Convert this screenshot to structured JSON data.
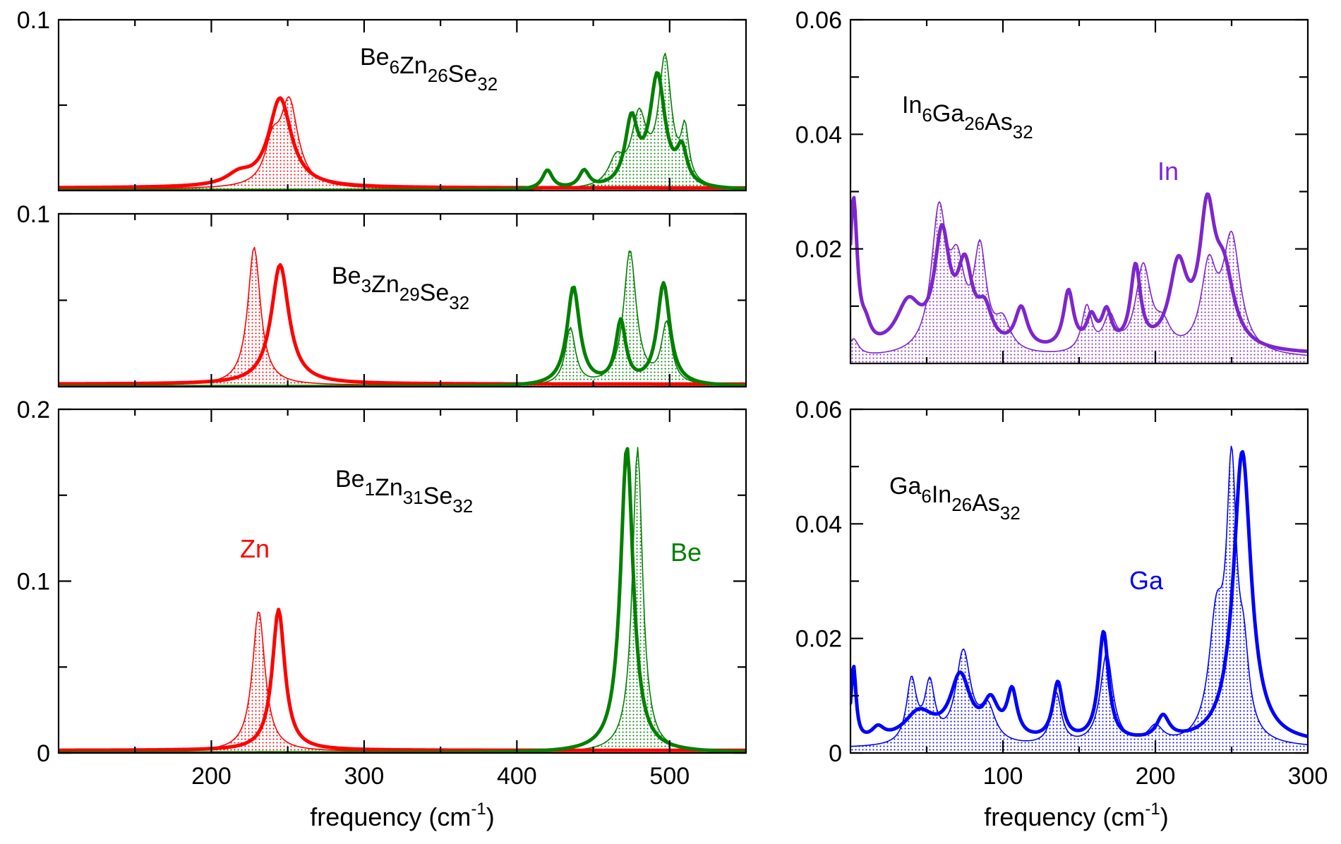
{
  "colors": {
    "Zn": "#ff0000",
    "Be": "#008000",
    "In": "#7d26cd",
    "Ga": "#0000ff",
    "axes": "#000000"
  },
  "chart_data": [
    {
      "type": "line",
      "title": "Be6Zn26Se32",
      "formula": [
        {
          "t": "Be",
          "s": "6"
        },
        {
          "t": "Zn",
          "s": "26"
        },
        {
          "t": "Se",
          "s": "32"
        }
      ],
      "xlim": [
        100,
        550
      ],
      "ylim": [
        0,
        0.1
      ],
      "y_ticks_labeled": [
        "0.1"
      ],
      "xlabel": "",
      "ylabel": "",
      "series": [
        {
          "name": "Zn",
          "style": "thick",
          "color": "#ff0000",
          "peaks": [
            [
              245,
              0.052,
              9
            ],
            [
              218,
              0.006,
              10
            ]
          ],
          "base": 0.0015
        },
        {
          "name": "Zn",
          "style": "thin-dotted-fill",
          "color": "#ff0000",
          "peaks": [
            [
              251,
              0.049,
              7
            ],
            [
              240,
              0.022,
              6
            ]
          ],
          "base": 0.0008
        },
        {
          "name": "Be",
          "style": "thick",
          "color": "#008000",
          "peaks": [
            [
              420,
              0.011,
              4
            ],
            [
              444,
              0.01,
              4
            ],
            [
              475,
              0.038,
              5
            ],
            [
              492,
              0.065,
              6
            ],
            [
              508,
              0.02,
              4
            ]
          ],
          "base": 0.0
        },
        {
          "name": "Be",
          "style": "thin-dotted-fill",
          "color": "#008000",
          "peaks": [
            [
              465,
              0.015,
              6
            ],
            [
              480,
              0.04,
              6
            ],
            [
              497,
              0.074,
              5
            ],
            [
              510,
              0.03,
              3
            ]
          ],
          "base": 0.0
        }
      ]
    },
    {
      "type": "line",
      "title": "Be3Zn29Se32",
      "formula": [
        {
          "t": "Be",
          "s": "3"
        },
        {
          "t": "Zn",
          "s": "29"
        },
        {
          "t": "Se",
          "s": "32"
        }
      ],
      "xlim": [
        100,
        550
      ],
      "ylim": [
        0,
        0.1
      ],
      "y_ticks_labeled": [
        "0.1"
      ],
      "xlabel": "",
      "ylabel": "",
      "series": [
        {
          "name": "Zn",
          "style": "thick",
          "color": "#ff0000",
          "peaks": [
            [
              245,
              0.069,
              7
            ]
          ],
          "base": 0.0015
        },
        {
          "name": "Zn",
          "style": "thin-dotted-fill",
          "color": "#ff0000",
          "peaks": [
            [
              228,
              0.08,
              5
            ]
          ],
          "base": 0.0008
        },
        {
          "name": "Be",
          "style": "thick",
          "color": "#008000",
          "peaks": [
            [
              437,
              0.057,
              5
            ],
            [
              468,
              0.036,
              4
            ],
            [
              496,
              0.059,
              5
            ]
          ],
          "base": 0.0
        },
        {
          "name": "Be",
          "style": "thin-dotted-fill",
          "color": "#008000",
          "peaks": [
            [
              435,
              0.033,
              4
            ],
            [
              474,
              0.078,
              5
            ],
            [
              498,
              0.035,
              4
            ]
          ],
          "base": 0.0
        }
      ]
    },
    {
      "type": "line",
      "title": "Be1Zn31Se32",
      "formula": [
        {
          "t": "Be",
          "s": "1"
        },
        {
          "t": "Zn",
          "s": "31"
        },
        {
          "t": "Se",
          "s": "32"
        }
      ],
      "xlim": [
        100,
        550
      ],
      "ylim": [
        0,
        0.2
      ],
      "y_ticks_labeled": [
        "0",
        "0.1",
        "0.2"
      ],
      "x_ticks_labeled": [
        "200",
        "300",
        "400",
        "500"
      ],
      "xlabel": "frequency (cm",
      "xlabel_sup": "-1",
      "xlabel_close": ")",
      "ylabel": "",
      "annotations": [
        {
          "text": "Zn",
          "color": "#ff0000"
        },
        {
          "text": "Be",
          "color": "#008000"
        }
      ],
      "series": [
        {
          "name": "Zn",
          "style": "thick",
          "color": "#ff0000",
          "peaks": [
            [
              244,
              0.082,
              5
            ]
          ],
          "base": 0.0015
        },
        {
          "name": "Zn",
          "style": "thin-dotted-fill",
          "color": "#ff0000",
          "peaks": [
            [
              231,
              0.082,
              5
            ]
          ],
          "base": 0.0008
        },
        {
          "name": "Be",
          "style": "thick",
          "color": "#008000",
          "peaks": [
            [
              472,
              0.178,
              5
            ]
          ],
          "base": 0.0
        },
        {
          "name": "Be",
          "style": "thin-dotted-fill",
          "color": "#008000",
          "peaks": [
            [
              479,
              0.178,
              4
            ]
          ],
          "base": 0.0
        }
      ]
    },
    {
      "type": "line",
      "title": "In6Ga26As32",
      "formula": [
        {
          "t": "In",
          "s": "6"
        },
        {
          "t": "Ga",
          "s": "26"
        },
        {
          "t": "As",
          "s": "32"
        }
      ],
      "xlim": [
        0,
        300
      ],
      "ylim": [
        0,
        0.06
      ],
      "y_ticks_labeled": [
        "0.02",
        "0.04",
        "0.06"
      ],
      "xlabel": "",
      "ylabel": "",
      "annotations": [
        {
          "text": "In",
          "color": "#7d26cd"
        }
      ],
      "series": [
        {
          "name": "In",
          "style": "thick",
          "color": "#7d26cd",
          "peaks": [
            [
              2,
              0.026,
              3
            ],
            [
              10,
              0.003,
              4
            ],
            [
              38,
              0.008,
              10
            ],
            [
              60,
              0.019,
              6
            ],
            [
              75,
              0.013,
              6
            ],
            [
              88,
              0.006,
              6
            ],
            [
              112,
              0.007,
              5
            ],
            [
              143,
              0.01,
              4
            ],
            [
              158,
              0.005,
              4
            ],
            [
              168,
              0.006,
              4
            ],
            [
              187,
              0.014,
              4
            ],
            [
              215,
              0.014,
              7
            ],
            [
              234,
              0.022,
              6
            ],
            [
              245,
              0.012,
              8
            ]
          ],
          "base": 0.0015
        },
        {
          "name": "In",
          "style": "thin-dotted-fill",
          "color": "#7d26cd",
          "peaks": [
            [
              2,
              0.003,
              4
            ],
            [
              58,
              0.024,
              6
            ],
            [
              70,
              0.013,
              6
            ],
            [
              85,
              0.017,
              5
            ],
            [
              100,
              0.005,
              6
            ],
            [
              155,
              0.008,
              4
            ],
            [
              170,
              0.006,
              5
            ],
            [
              192,
              0.015,
              6
            ],
            [
              205,
              0.004,
              6
            ],
            [
              235,
              0.014,
              6
            ],
            [
              250,
              0.02,
              7
            ]
          ],
          "base": 0.0008
        }
      ]
    },
    {
      "type": "line",
      "title": "Ga6In26As32",
      "formula": [
        {
          "t": "Ga",
          "s": "6"
        },
        {
          "t": "In",
          "s": "26"
        },
        {
          "t": "As",
          "s": "32"
        }
      ],
      "xlim": [
        0,
        300
      ],
      "ylim": [
        0,
        0.06
      ],
      "y_ticks_labeled": [
        "0",
        "0.02",
        "0.04",
        "0.06"
      ],
      "x_ticks_labeled": [
        "100",
        "200",
        "300"
      ],
      "xlabel": "frequency (cm",
      "xlabel_sup": "-1",
      "xlabel_close": ")",
      "ylabel": "",
      "annotations": [
        {
          "text": "Ga",
          "color": "#0000ff"
        }
      ],
      "series": [
        {
          "name": "Ga",
          "style": "thick",
          "color": "#0000ff",
          "peaks": [
            [
              2,
              0.013,
              2
            ],
            [
              18,
              0.002,
              5
            ],
            [
              45,
              0.005,
              12
            ],
            [
              72,
              0.011,
              8
            ],
            [
              92,
              0.006,
              6
            ],
            [
              106,
              0.008,
              4
            ],
            [
              136,
              0.01,
              4
            ],
            [
              166,
              0.019,
              4
            ],
            [
              205,
              0.004,
              5
            ],
            [
              257,
              0.051,
              7
            ]
          ],
          "base": 0.0015
        },
        {
          "name": "Ga",
          "style": "thin-dotted-fill",
          "color": "#0000ff",
          "peaks": [
            [
              40,
              0.011,
              4
            ],
            [
              52,
              0.01,
              4
            ],
            [
              74,
              0.016,
              6
            ],
            [
              90,
              0.006,
              6
            ],
            [
              135,
              0.009,
              4
            ],
            [
              168,
              0.016,
              5
            ],
            [
              200,
              0.003,
              6
            ],
            [
              240,
              0.02,
              6
            ],
            [
              250,
              0.045,
              4
            ],
            [
              258,
              0.012,
              4
            ]
          ],
          "base": 0.0008
        }
      ]
    }
  ]
}
